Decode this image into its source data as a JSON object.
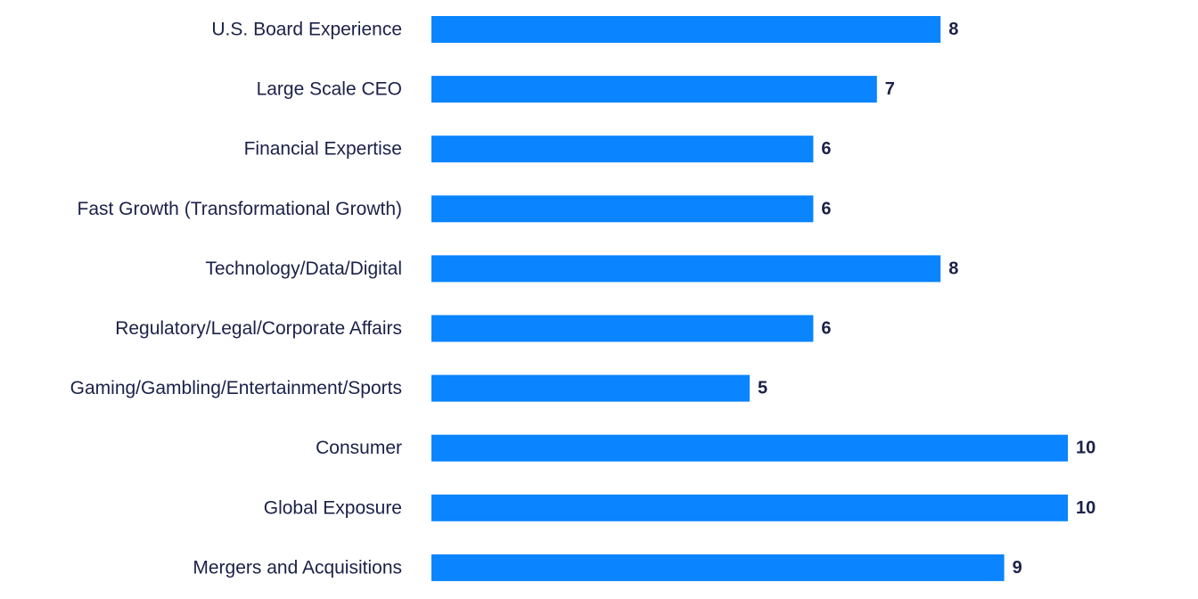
{
  "chart_data": {
    "type": "bar",
    "orientation": "horizontal",
    "categories": [
      "U.S. Board Experience",
      "Large Scale CEO",
      "Financial Expertise",
      "Fast Growth (Transformational Growth)",
      "Technology/Data/Digital",
      "Regulatory/Legal/Corporate Affairs",
      "Gaming/Gambling/Entertainment/Sports",
      "Consumer",
      "Global Exposure",
      "Mergers and Acquisitions"
    ],
    "values": [
      8,
      7,
      6,
      6,
      8,
      6,
      5,
      10,
      10,
      9
    ],
    "data_labels": [
      "8",
      "7",
      "6",
      "6",
      "8",
      "6",
      "5",
      "10",
      "10",
      "9"
    ],
    "xlim": [
      0,
      10
    ],
    "grid": false,
    "legend": "none",
    "colors": {
      "bar": "#0a84ff",
      "text": "#1b2148"
    }
  }
}
